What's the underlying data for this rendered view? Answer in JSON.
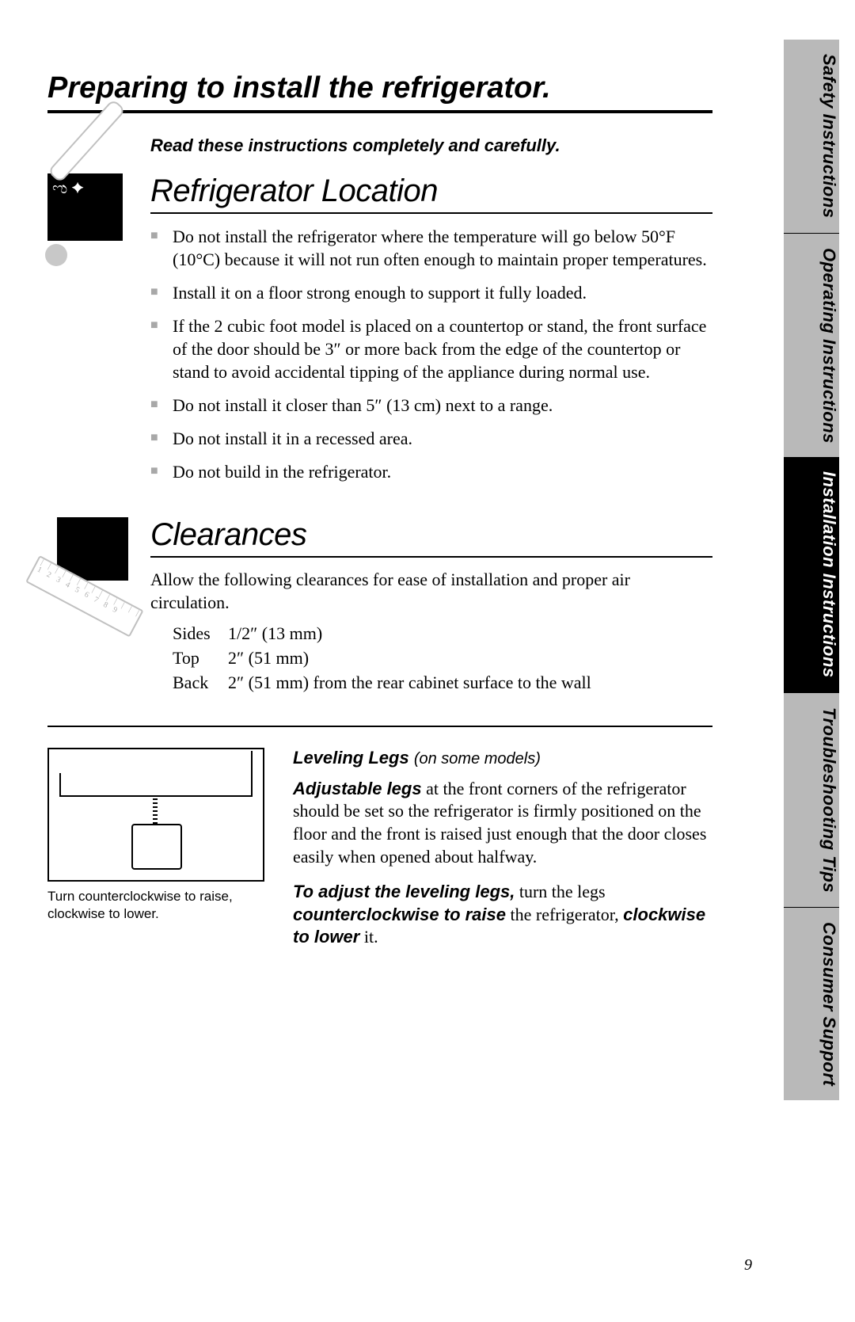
{
  "page": {
    "title": "Preparing to install the refrigerator.",
    "subtitle": "Read these instructions completely and carefully.",
    "number": "9"
  },
  "tabs": {
    "safety": "Safety Instructions",
    "operating": "Operating Instructions",
    "installation": "Installation Instructions",
    "troubleshooting": "Troubleshooting Tips",
    "consumer": "Consumer Support"
  },
  "location": {
    "heading": "Refrigerator Location",
    "bullets": [
      "Do not install the refrigerator where the temperature will go below 50°F (10°C) because it will not run often enough to maintain proper temperatures.",
      "Install it on a floor strong enough to support it fully loaded.",
      "If the 2 cubic foot model is placed on a countertop or stand, the front surface of the door should be 3″ or more back from the edge of the countertop or stand to avoid accidental tipping of the appliance during normal use.",
      "Do not install it closer than 5″ (13 cm) next to a range.",
      "Do not install it in a recessed area.",
      "Do not build in the refrigerator."
    ]
  },
  "clearances": {
    "heading": "Clearances",
    "intro": "Allow the following clearances for ease of installation and proper air circulation.",
    "rows": [
      {
        "label": "Sides",
        "value": "1/2″ (13 mm)"
      },
      {
        "label": "Top",
        "value": "2″ (51 mm)"
      },
      {
        "label": "Back",
        "value": "2″ (51 mm) from the rear cabinet surface to the wall"
      }
    ]
  },
  "leveling": {
    "title_main": "Leveling Legs",
    "title_note": "(on some models)",
    "para1_lead": "Adjustable legs",
    "para1_rest": " at the front corners of the refrigerator should be set so the refrigerator is firmly positioned on the floor and the front is raised just enough that the door closes easily when opened about halfway.",
    "para2_lead": "To adjust the leveling legs,",
    "para2_mid1": " turn the legs ",
    "para2_b1": "counterclockwise to raise",
    "para2_mid2": " the refrigerator, ",
    "para2_b2": "clockwise to lower",
    "para2_end": " it.",
    "caption": "Turn counterclockwise to raise, clockwise to lower."
  }
}
